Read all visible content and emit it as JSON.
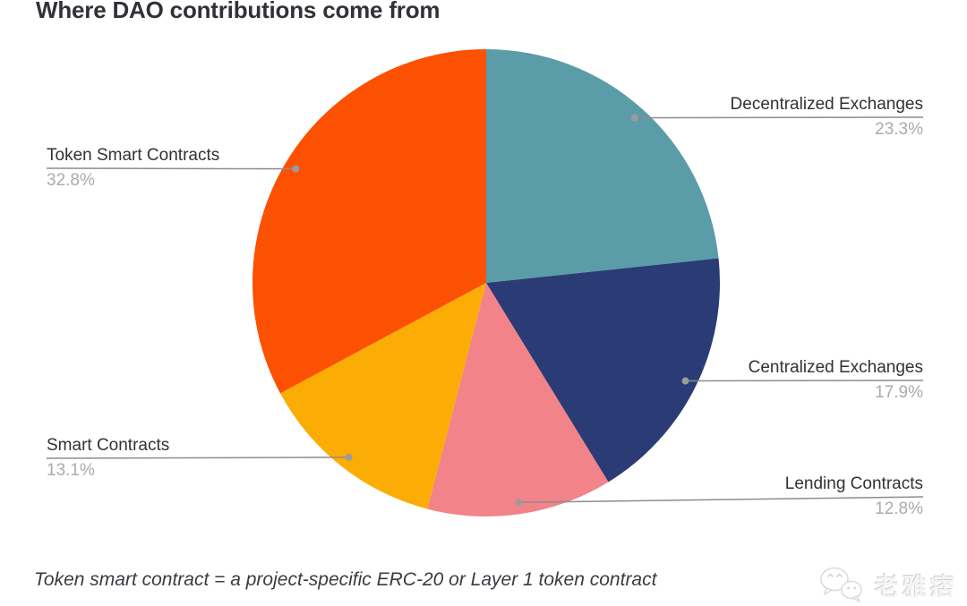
{
  "page": {
    "title": "Where DAO contributions come from",
    "footnote": "Token smart contract = a project-specific ERC-20 or Layer 1 token contract",
    "watermark": {
      "icon": "wechat-logo-icon",
      "text": "老雅痞"
    }
  },
  "colors": {
    "background": "#FFFFFF",
    "title_text": "#303238",
    "label_text": "#2F3237",
    "percent_text": "#A9ABAD",
    "leader_line": "#8D8D8D",
    "leader_dot": "#9B9B9B"
  },
  "chart_data": {
    "type": "pie",
    "title": "Where DAO contributions come from",
    "start_angle_deg": 0,
    "direction": "clockwise",
    "legend_position": "callout-labels",
    "series": [
      {
        "label": "Decentralized Exchanges",
        "value": 23.3,
        "pct_text": "23.3%",
        "color": "#5B9CA9"
      },
      {
        "label": "Centralized Exchanges",
        "value": 17.9,
        "pct_text": "17.9%",
        "color": "#2B3B75"
      },
      {
        "label": "Lending Contracts",
        "value": 12.8,
        "pct_text": "12.8%",
        "color": "#F28389"
      },
      {
        "label": "Smart Contracts",
        "value": 13.1,
        "pct_text": "13.1%",
        "color": "#FBAD05"
      },
      {
        "label": "Token Smart Contracts",
        "value": 32.8,
        "pct_text": "32.8%",
        "color": "#FC5102"
      }
    ]
  }
}
